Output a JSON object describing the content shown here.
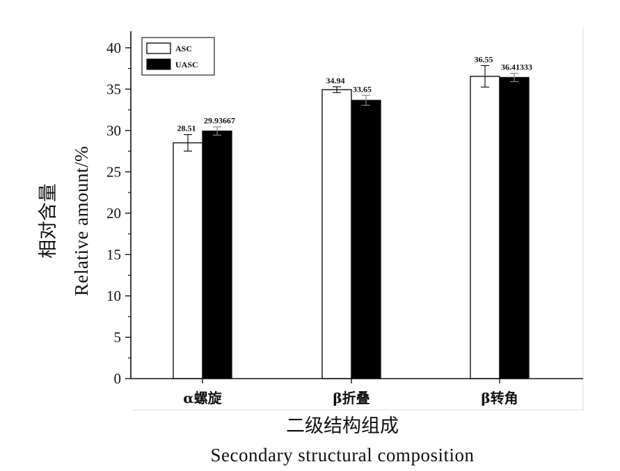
{
  "chart_data": {
    "type": "bar",
    "categories": [
      "α螺旋",
      "β折叠",
      "β转角"
    ],
    "series": [
      {
        "name": "ASC",
        "values": [
          28.51,
          34.94,
          36.55
        ],
        "errors": [
          1.0,
          0.35,
          1.3
        ],
        "labels": [
          "28.51",
          "34.94",
          "36.55"
        ],
        "color": "#ffffff"
      },
      {
        "name": "UASC",
        "values": [
          29.93667,
          33.65,
          36.41333
        ],
        "errors": [
          0.5,
          0.6,
          0.5
        ],
        "labels": [
          "29.93667",
          "33.65",
          "36.41333"
        ],
        "color": "#000000"
      }
    ],
    "xlabel_cn": "二级结构组成",
    "xlabel_en": "Secondary structural composition",
    "ylabel_cn": "相对含量",
    "ylabel_en": "Relative amount/%",
    "ylim": [
      0,
      42
    ],
    "yticks": [
      0,
      5,
      10,
      15,
      20,
      25,
      30,
      35,
      40
    ],
    "legend_position": "top-left"
  }
}
